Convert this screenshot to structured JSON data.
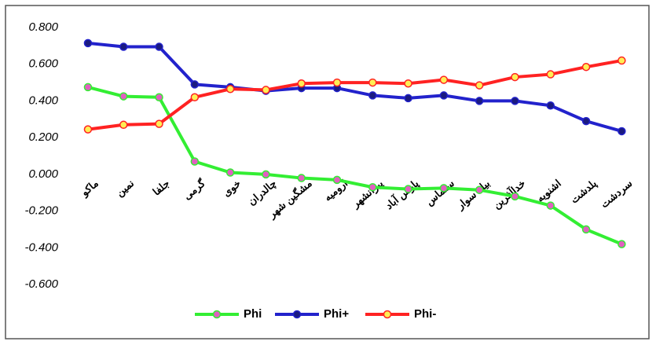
{
  "chart_data": {
    "type": "line",
    "categories": [
      "ماکو",
      "نمین",
      "جلفا",
      "گرمی",
      "خوی",
      "چالدران",
      "مشگین شهر",
      "ارومیه",
      "پیرانشهر",
      "پارس آباد",
      "سلماس",
      "بیله سوار",
      "خداآفرین",
      "اشنویه",
      "پلدشت",
      "سردشت"
    ],
    "series": [
      {
        "name": "Phi",
        "color": "#33ee33",
        "marker_color": "#e060c0",
        "values": [
          0.475,
          0.425,
          0.42,
          0.07,
          0.01,
          0.0,
          -0.02,
          -0.03,
          -0.07,
          -0.08,
          -0.075,
          -0.085,
          -0.12,
          -0.17,
          -0.3,
          -0.38
        ]
      },
      {
        "name": "Phi+",
        "color": "#2222cc",
        "marker_color": "#1a1a80",
        "values": [
          0.715,
          0.695,
          0.695,
          0.49,
          0.475,
          0.455,
          0.47,
          0.47,
          0.43,
          0.415,
          0.43,
          0.4,
          0.4,
          0.375,
          0.29,
          0.235
        ]
      },
      {
        "name": "Phi-",
        "color": "#ff2222",
        "marker_color": "#ffee55",
        "values": [
          0.245,
          0.27,
          0.275,
          0.42,
          0.465,
          0.46,
          0.495,
          0.5,
          0.5,
          0.495,
          0.515,
          0.485,
          0.53,
          0.545,
          0.585,
          0.62
        ]
      }
    ],
    "ylim": [
      -0.6,
      0.8
    ],
    "yticks": [
      {
        "value": -0.6,
        "label": "-0.600"
      },
      {
        "value": -0.4,
        "label": "-0.400"
      },
      {
        "value": -0.2,
        "label": "-0.200"
      },
      {
        "value": 0,
        "label": "0.000"
      },
      {
        "value": 0.2,
        "label": "0.200"
      },
      {
        "value": 0.4,
        "label": "0.400"
      },
      {
        "value": 0.6,
        "label": "0.600"
      },
      {
        "value": 0.8,
        "label": "0.800"
      }
    ],
    "grid": false,
    "legend": "bottom"
  }
}
